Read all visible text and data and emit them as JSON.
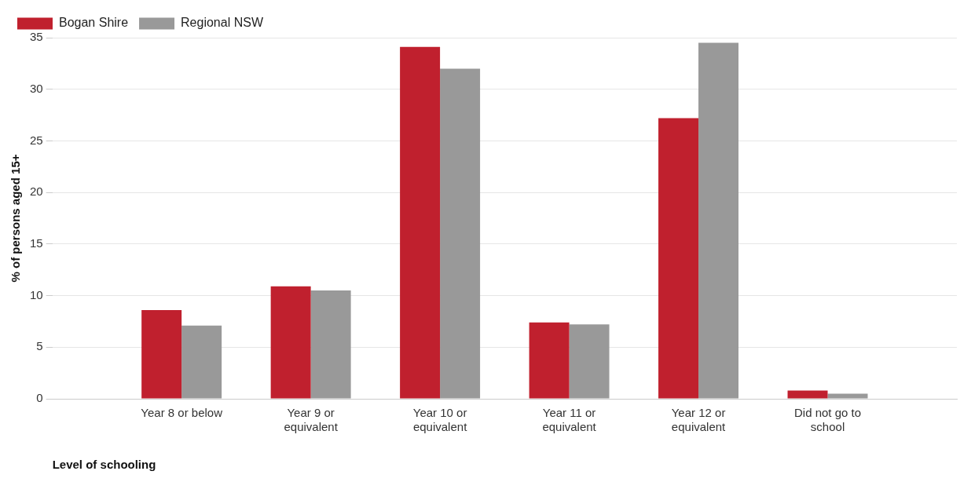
{
  "chart_data": {
    "type": "bar",
    "categories": [
      null,
      "Year 8 or below",
      "Year 9 or equivalent",
      "Year 10 or equivalent",
      "Year 11 or equivalent",
      "Year 12 or equivalent",
      "Did not go to school",
      null
    ],
    "series": [
      {
        "name": "Bogan Shire",
        "color": "#c0202e",
        "values": [
          null,
          8.6,
          10.9,
          34.1,
          7.4,
          27.2,
          0.8,
          null
        ]
      },
      {
        "name": "Regional NSW",
        "color": "#999999",
        "values": [
          null,
          7.1,
          10.5,
          32.0,
          7.2,
          34.5,
          0.5,
          null
        ]
      }
    ],
    "xlabel": "Level of schooling",
    "ylabel": "% of persons aged 15+",
    "ylim": [
      0,
      35
    ],
    "yticks": [
      0,
      5,
      10,
      15,
      20,
      25,
      30,
      35
    ],
    "grid": "y",
    "legend": "top left"
  }
}
